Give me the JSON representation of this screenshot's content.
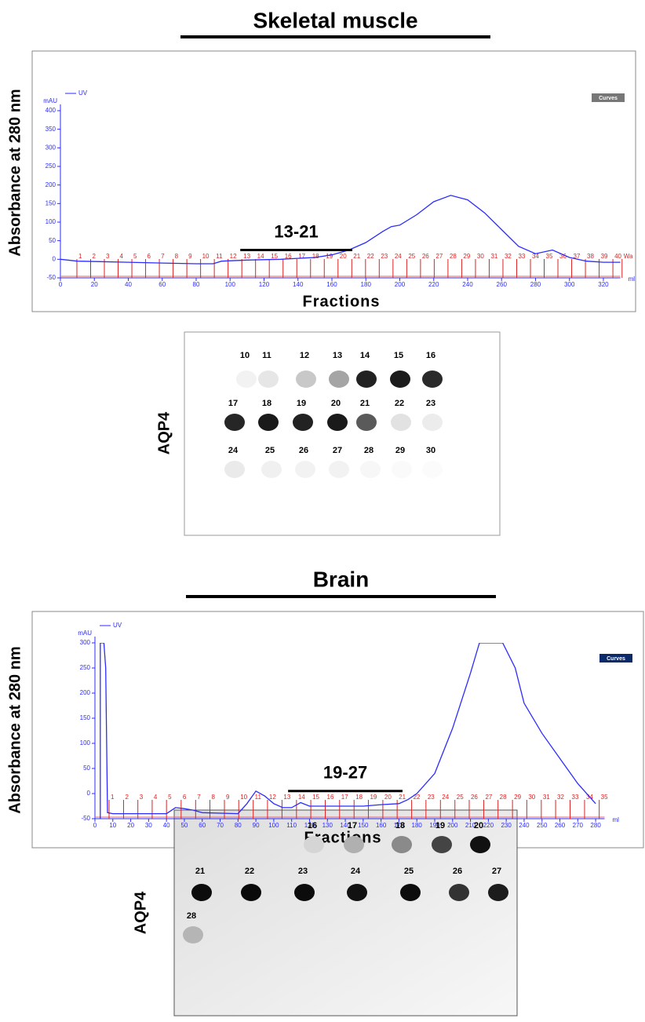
{
  "chart_data": [
    {
      "type": "line",
      "title": "Skeletal muscle",
      "y_label": "Absorbance at 280 nm",
      "x_label": "Fractions",
      "y_unit": "mAU",
      "x_unit": "ml",
      "button": "Curves",
      "xlim": [
        0,
        330
      ],
      "xticks": [
        0,
        20,
        40,
        60,
        80,
        100,
        120,
        140,
        160,
        180,
        200,
        220,
        240,
        260,
        280,
        300,
        320
      ],
      "ylim": [
        -50,
        400
      ],
      "yticks": [
        -50,
        0,
        50,
        100,
        150,
        200,
        250,
        300,
        350,
        400
      ],
      "series": [
        {
          "name": "UV",
          "color": "#2b2bff",
          "x": [
            0,
            10,
            40,
            60,
            80,
            90,
            95,
            110,
            130,
            150,
            160,
            170,
            180,
            190,
            195,
            200,
            210,
            220,
            230,
            240,
            250,
            260,
            270,
            280,
            290,
            300,
            310,
            320,
            330
          ],
          "values": [
            0,
            -5,
            -8,
            -10,
            -12,
            -12,
            -5,
            -2,
            0,
            5,
            12,
            25,
            45,
            75,
            88,
            92,
            120,
            155,
            172,
            160,
            125,
            80,
            35,
            15,
            25,
            5,
            -5,
            -8,
            -8
          ]
        }
      ],
      "fractions": {
        "labels": [
          "1",
          "2",
          "3",
          "4",
          "5",
          "6",
          "7",
          "8",
          "9",
          "10",
          "11",
          "12",
          "13",
          "14",
          "15",
          "16",
          "17",
          "18",
          "19",
          "20",
          "21",
          "22",
          "23",
          "24",
          "25",
          "26",
          "27",
          "28",
          "29",
          "30",
          "31",
          "32",
          "33",
          "34",
          "35",
          "36",
          "37",
          "38",
          "39",
          "40",
          "Wa"
        ],
        "x": [
          9.7,
          17.8,
          25.9,
          34,
          42.1,
          50.2,
          58.3,
          66.4,
          74.5,
          82.6,
          90.7,
          98.8,
          106.9,
          115,
          123.1,
          131.2,
          139.3,
          147.4,
          155.5,
          163.6,
          171.7,
          179.8,
          187.9,
          196,
          204.1,
          212.2,
          220.3,
          228.4,
          236.5,
          244.6,
          252.7,
          260.8,
          268.9,
          277,
          285.1,
          293.2,
          301.3,
          309.4,
          317.5,
          325.6,
          331
        ]
      },
      "annotation": {
        "text": "13-21",
        "x": [
          106,
          172
        ],
        "y": 25
      }
    },
    {
      "type": "line",
      "title": "Brain",
      "y_label": "Absorbance at 280 nm",
      "x_label": "Fractions",
      "y_unit": "mAU",
      "x_unit": "ml",
      "button": "Curves",
      "xlim": [
        0,
        285
      ],
      "xticks": [
        0,
        10,
        20,
        30,
        40,
        50,
        60,
        70,
        80,
        90,
        100,
        110,
        120,
        130,
        140,
        150,
        160,
        170,
        180,
        190,
        200,
        210,
        220,
        230,
        240,
        250,
        260,
        270,
        280
      ],
      "ylim": [
        -50,
        300
      ],
      "yticks": [
        -50,
        0,
        50,
        100,
        150,
        200,
        250,
        300
      ],
      "series": [
        {
          "name": "UV",
          "color": "#2b2bff",
          "x": [
            3,
            3,
            5,
            6,
            7,
            10,
            40,
            45,
            50,
            55,
            60,
            80,
            85,
            90,
            95,
            100,
            105,
            110,
            115,
            120,
            150,
            160,
            170,
            175,
            180,
            190,
            200,
            210,
            215,
            228,
            235,
            240,
            250,
            260,
            270,
            280
          ],
          "values": [
            -50,
            300,
            300,
            250,
            -38,
            -40,
            -40,
            -28,
            -30,
            -33,
            -38,
            -40,
            -20,
            5,
            -5,
            -20,
            -28,
            -28,
            -18,
            -25,
            -25,
            -22,
            -20,
            -12,
            0,
            40,
            130,
            240,
            300,
            300,
            250,
            180,
            120,
            70,
            20,
            -20
          ]
        }
      ],
      "fractions": {
        "labels": [
          "1",
          "2",
          "3",
          "4",
          "5",
          "6",
          "7",
          "8",
          "9",
          "10",
          "11",
          "12",
          "13",
          "14",
          "15",
          "16",
          "17",
          "18",
          "19",
          "20",
          "21",
          "22",
          "23",
          "24",
          "25",
          "26",
          "27",
          "28",
          "29",
          "30",
          "31",
          "32",
          "33",
          "34",
          "35"
        ],
        "x": [
          7.9,
          16,
          24,
          32,
          40,
          48.2,
          56.3,
          64.3,
          72.4,
          80.4,
          88.5,
          96.5,
          104.6,
          112.7,
          120.7,
          128.8,
          136.8,
          144.9,
          152.9,
          161,
          169,
          177.1,
          185.1,
          193.2,
          201.3,
          209.3,
          217.4,
          225.4,
          233.5,
          241.5,
          249.6,
          257.6,
          265.7,
          273.8,
          282
        ]
      },
      "annotation": {
        "text": "19-27",
        "x": [
          108,
          172
        ],
        "y": 5
      }
    }
  ],
  "blots": [
    {
      "label": "AQP4",
      "rows": [
        [
          {
            "label": "10",
            "color": "#f2f2f2"
          },
          {
            "label": "11",
            "color": "#e6e6e6"
          },
          {
            "label": "12",
            "color": "#c8c8c8"
          },
          {
            "label": "13",
            "color": "#a5a5a5"
          },
          {
            "label": "14",
            "color": "#222"
          },
          {
            "label": "15",
            "color": "#1c1c1c"
          },
          {
            "label": "16",
            "color": "#2a2a2a"
          }
        ],
        [
          {
            "label": "17",
            "color": "#262626"
          },
          {
            "label": "18",
            "color": "#1a1a1a"
          },
          {
            "label": "19",
            "color": "#222"
          },
          {
            "label": "20",
            "color": "#1a1a1a"
          },
          {
            "label": "21",
            "color": "#5a5a5a"
          },
          {
            "label": "22",
            "color": "#e2e2e2"
          },
          {
            "label": "23",
            "color": "#ececec"
          }
        ],
        [
          {
            "label": "24",
            "color": "#eaeaea"
          },
          {
            "label": "25",
            "color": "#f0f0f0"
          },
          {
            "label": "26",
            "color": "#f2f2f2"
          },
          {
            "label": "27",
            "color": "#f2f2f2"
          },
          {
            "label": "28",
            "color": "#f7f7f7"
          },
          {
            "label": "29",
            "color": "#fafafa"
          },
          {
            "label": "30",
            "color": "#fbfbfb"
          }
        ]
      ]
    },
    {
      "label": "AQP4",
      "rows": [
        [
          {
            "label": "16",
            "color": "#d5d5d5"
          },
          {
            "label": "17",
            "color": "#b0b0b0"
          },
          {
            "label": "18",
            "color": "#8a8a8a"
          },
          {
            "label": "19",
            "color": "#444"
          },
          {
            "label": "20",
            "color": "#111"
          }
        ],
        [
          {
            "label": "21",
            "color": "#0c0c0c"
          },
          {
            "label": "22",
            "color": "#0a0a0a"
          },
          {
            "label": "23",
            "color": "#0c0c0c"
          },
          {
            "label": "24",
            "color": "#111"
          },
          {
            "label": "25",
            "color": "#0c0c0c"
          },
          {
            "label": "26",
            "color": "#333"
          },
          {
            "label": "27",
            "color": "#1c1c1c"
          }
        ],
        [
          {
            "label": "28",
            "color": "#b5b5b5"
          }
        ]
      ]
    }
  ]
}
